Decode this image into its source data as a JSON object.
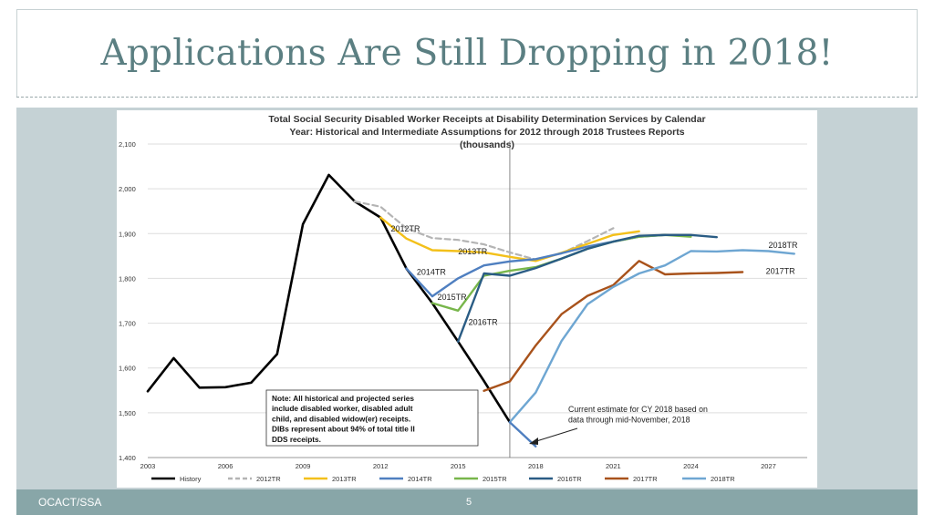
{
  "slide": {
    "title": "Applications Are Still Dropping in 2018!",
    "footer_left": "OCACT/SSA",
    "page_number": "5"
  },
  "chart_data": {
    "type": "line",
    "title_lines": [
      "Total Social Security Disabled Worker Receipts at Disability Determination Services by Calendar",
      "Year: Historical and Intermediate Assumptions for 2012 through 2018 Trustees Reports",
      "(thousands)"
    ],
    "xlim": [
      2003,
      2028.5
    ],
    "ylim": [
      1400,
      2100
    ],
    "x_ticks": [
      "2003",
      "2006",
      "2009",
      "2012",
      "2015",
      "2018",
      "2021",
      "2024",
      "2027"
    ],
    "y_ticks": [
      "1,400",
      "1,500",
      "1,600",
      "1,700",
      "1,800",
      "1,900",
      "2,000",
      "2,100"
    ],
    "grid": true,
    "legend_position": "bottom",
    "vertical_marker_x": 2017,
    "series": [
      {
        "name": "History",
        "color": "#000000",
        "dash": false,
        "width": 2.6,
        "x": [
          2003,
          2004,
          2005,
          2006,
          2007,
          2008,
          2009,
          2010,
          2011,
          2012,
          2013,
          2014,
          2015,
          2016,
          2017
        ],
        "y": [
          1548,
          1622,
          1556,
          1557,
          1567,
          1631,
          1921,
          2031,
          1972,
          1936,
          1822,
          1745,
          1659,
          1571,
          1479
        ]
      },
      {
        "name": "2012TR",
        "color": "#b4b4b4",
        "dash": true,
        "width": 2.2,
        "x": [
          2011,
          2012,
          2013,
          2014,
          2015,
          2016,
          2017,
          2018,
          2019,
          2020,
          2021
        ],
        "y": [
          1972,
          1960,
          1912,
          1890,
          1886,
          1876,
          1858,
          1842,
          1856,
          1883,
          1912
        ]
      },
      {
        "name": "2013TR",
        "color": "#f3c01a",
        "dash": false,
        "width": 2.4,
        "x": [
          2012,
          2013,
          2014,
          2015,
          2016,
          2017,
          2018,
          2019,
          2020,
          2021,
          2022
        ],
        "y": [
          1936,
          1889,
          1863,
          1861,
          1858,
          1848,
          1839,
          1857,
          1877,
          1897,
          1905
        ]
      },
      {
        "name": "2014TR",
        "color": "#4f7fc0",
        "dash": false,
        "width": 2.4,
        "x": [
          2013,
          2014,
          2015,
          2016,
          2017,
          2018,
          2019,
          2020,
          2021,
          2022,
          2023
        ],
        "y": [
          1822,
          1760,
          1800,
          1829,
          1838,
          1843,
          1856,
          1871,
          1882,
          1893,
          1897
        ]
      },
      {
        "name": "2015TR",
        "color": "#78b64b",
        "dash": false,
        "width": 2.4,
        "x": [
          2014,
          2015,
          2016,
          2017,
          2018,
          2019,
          2020,
          2021,
          2022,
          2023,
          2024
        ],
        "y": [
          1745,
          1728,
          1806,
          1817,
          1825,
          1844,
          1866,
          1882,
          1893,
          1897,
          1893
        ]
      },
      {
        "name": "2016TR",
        "color": "#2a5c84",
        "dash": false,
        "width": 2.4,
        "x": [
          2015,
          2016,
          2017,
          2018,
          2019,
          2020,
          2021,
          2022,
          2023,
          2024,
          2025
        ],
        "y": [
          1659,
          1811,
          1806,
          1823,
          1844,
          1866,
          1882,
          1895,
          1897,
          1897,
          1892
        ]
      },
      {
        "name": "2017TR",
        "color": "#a8521b",
        "dash": false,
        "width": 2.4,
        "x": [
          2016,
          2017,
          2018,
          2019,
          2020,
          2021,
          2022,
          2023,
          2024,
          2025,
          2026
        ],
        "y": [
          1549,
          1570,
          1650,
          1720,
          1761,
          1785,
          1839,
          1809,
          1811,
          1812,
          1814
        ]
      },
      {
        "name": "2018TR",
        "color": "#6ea6d2",
        "dash": false,
        "width": 2.4,
        "x": [
          2017,
          2018,
          2019,
          2020,
          2021,
          2022,
          2023,
          2024,
          2025,
          2026,
          2027,
          2028
        ],
        "y": [
          1479,
          1545,
          1660,
          1742,
          1781,
          1811,
          1829,
          1861,
          1860,
          1863,
          1861,
          1855
        ]
      },
      {
        "name": "",
        "color": "#4f7fc0",
        "dash": false,
        "width": 2.4,
        "x": [
          2017,
          2018
        ],
        "y": [
          1479,
          1425
        ]
      }
    ],
    "annotations": [
      {
        "text": "2012TR",
        "x": 2012.4,
        "y": 1905
      },
      {
        "text": "2013TR",
        "x": 2015.0,
        "y": 1854
      },
      {
        "text": "2014TR",
        "x": 2013.4,
        "y": 1808
      },
      {
        "text": "2015TR",
        "x": 2014.2,
        "y": 1752
      },
      {
        "text": "2016TR",
        "x": 2015.4,
        "y": 1696
      },
      {
        "text": "2017TR",
        "x": 2026.9,
        "y": 1810
      },
      {
        "text": "2018TR",
        "x": 2027.0,
        "y": 1868
      }
    ],
    "note_lines": [
      "Note: All historical and projected series",
      "include disabled worker, disabled adult",
      "child, and disabled widow(er) receipts.",
      "DIBs represent about 94% of total title II",
      "DDS receipts."
    ],
    "estimate_lines": [
      "Current estimate for CY 2018 based on",
      "data through mid-November, 2018"
    ]
  }
}
